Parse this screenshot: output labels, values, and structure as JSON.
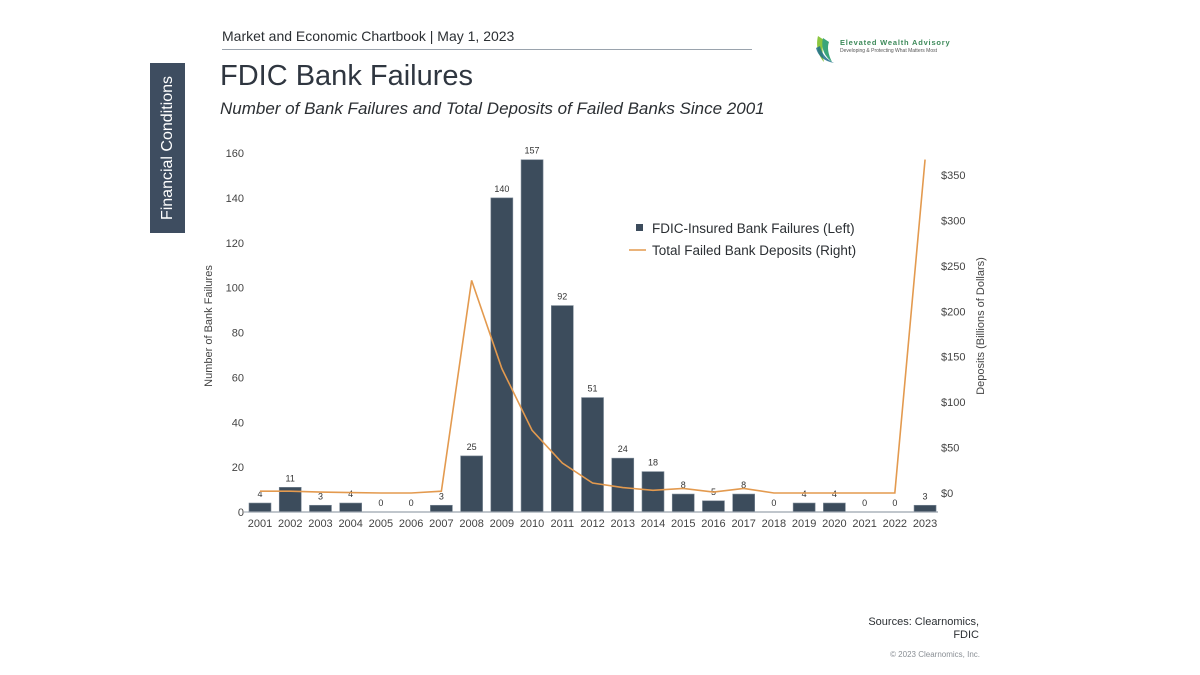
{
  "header": {
    "chartbook": "Market and Economic Chartbook | May 1, 2023",
    "section_tab": "Financial Conditions",
    "title": "FDIC Bank Failures",
    "subtitle": "Number of Bank Failures and Total Deposits of Failed Banks Since 2001"
  },
  "logo": {
    "name": "Elevated Wealth Advisory",
    "tagline": "Developing & Protecting What Matters Most"
  },
  "footer": {
    "sources_line1": "Sources: Clearnomics,",
    "sources_line2": "FDIC",
    "copyright": "© 2023 Clearnomics, Inc."
  },
  "colors": {
    "bar": "#3c4c5c",
    "line": "#e39a4f",
    "tab": "#3e4d60",
    "axis": "#9aa3ad"
  },
  "chart_data": {
    "type": "bar",
    "title": "FDIC Bank Failures",
    "subtitle": "Number of Bank Failures and Total Deposits of Failed Banks Since 2001",
    "categories": [
      "2001",
      "2002",
      "2003",
      "2004",
      "2005",
      "2006",
      "2007",
      "2008",
      "2009",
      "2010",
      "2011",
      "2012",
      "2013",
      "2014",
      "2015",
      "2016",
      "2017",
      "2018",
      "2019",
      "2020",
      "2021",
      "2022",
      "2023"
    ],
    "series": [
      {
        "name": "FDIC-Insured Bank Failures (Left)",
        "type": "bar",
        "axis": "left",
        "values": [
          4,
          11,
          3,
          4,
          0,
          0,
          3,
          25,
          140,
          157,
          92,
          51,
          24,
          18,
          8,
          5,
          8,
          0,
          4,
          4,
          0,
          0,
          3
        ]
      },
      {
        "name": "Total Failed Bank Deposits (Right)",
        "type": "line",
        "axis": "right",
        "values": [
          2,
          2,
          1,
          0.5,
          0,
          0,
          2,
          234,
          137,
          69,
          33,
          11,
          6,
          3,
          5,
          1,
          5,
          0,
          0,
          0,
          0,
          0,
          367
        ]
      }
    ],
    "ylabel_left": "Number of Bank Failures",
    "ylabel_right": "Deposits (Billions of Dollars)",
    "ylim_left": [
      0,
      160
    ],
    "yticks_left": [
      "0",
      "20",
      "40",
      "60",
      "80",
      "100",
      "120",
      "140",
      "160"
    ],
    "ylim_right": [
      0,
      350
    ],
    "yticks_right": [
      "$0",
      "$50",
      "$100",
      "$150",
      "$200",
      "$250",
      "$300",
      "$350"
    ],
    "legend": [
      "FDIC-Insured Bank Failures (Left)",
      "Total Failed Bank Deposits (Right)"
    ],
    "legend_position": "upper right inside",
    "grid": false,
    "data_labels": true
  }
}
